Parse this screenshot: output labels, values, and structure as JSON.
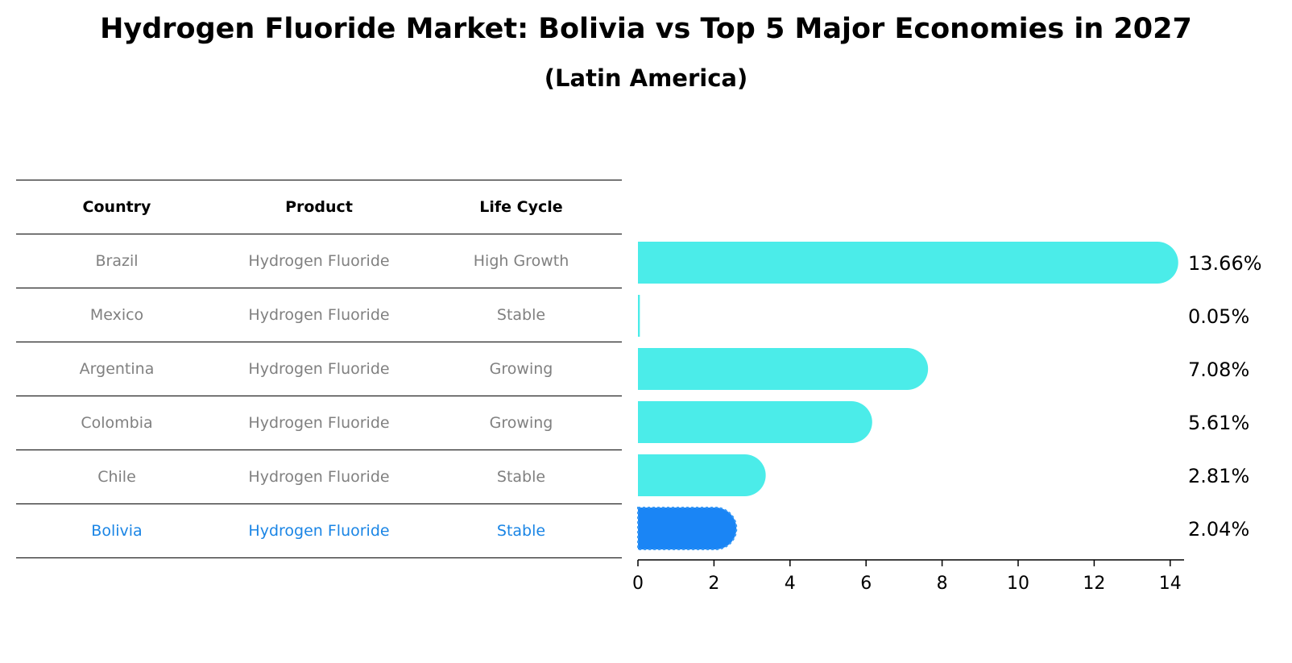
{
  "title": "Hydrogen Fluoride Market: Bolivia vs Top 5 Major Economies in 2027",
  "subtitle": "(Latin America)",
  "table": {
    "headers": [
      "Country",
      "Product",
      "Life Cycle"
    ],
    "rows": [
      {
        "country": "Brazil",
        "product": "Hydrogen Fluoride",
        "life_cycle": "High Growth"
      },
      {
        "country": "Mexico",
        "product": "Hydrogen Fluoride",
        "life_cycle": "Stable"
      },
      {
        "country": "Argentina",
        "product": "Hydrogen Fluoride",
        "life_cycle": "Growing"
      },
      {
        "country": "Colombia",
        "product": "Hydrogen Fluoride",
        "life_cycle": "Growing"
      },
      {
        "country": "Chile",
        "product": "Hydrogen Fluoride",
        "life_cycle": "Stable"
      },
      {
        "country": "Bolivia",
        "product": "Hydrogen Fluoride",
        "life_cycle": "Stable"
      }
    ]
  },
  "colors": {
    "bar": "#4bece9",
    "highlight": "#1a85f5",
    "highlight_text": "#1a85e5",
    "muted_text": "#808080"
  },
  "chart_data": {
    "type": "bar",
    "orientation": "horizontal",
    "categories": [
      "Brazil",
      "Mexico",
      "Argentina",
      "Colombia",
      "Chile",
      "Bolivia"
    ],
    "values": [
      13.66,
      0.05,
      7.08,
      5.61,
      2.81,
      2.04
    ],
    "data_labels": [
      "13.66%",
      "0.05%",
      "7.08%",
      "5.61%",
      "2.81%",
      "2.04%"
    ],
    "highlight": "Bolivia",
    "xlim": [
      0,
      14.3
    ],
    "xticks": [
      0,
      2,
      4,
      6,
      8,
      10,
      12,
      14
    ],
    "xtick_labels": [
      "0",
      "2",
      "4",
      "6",
      "8",
      "10",
      "12",
      "14"
    ],
    "xlabel": "",
    "ylabel": ""
  }
}
